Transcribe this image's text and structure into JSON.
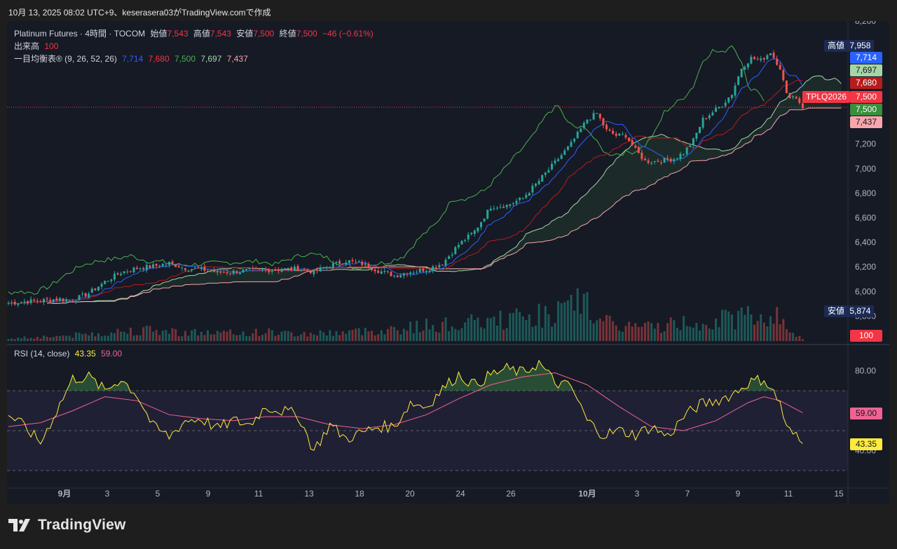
{
  "caption": "10月 13, 2025 08:02 UTC+9、keserasera03がTradingView.comで作成",
  "header": {
    "symbol": "Platinum Futures · 4時間 · TOCOM",
    "open_label": "始値",
    "open_value": "7,543",
    "high_label": "高値",
    "high_value": "7,543",
    "low_label": "安値",
    "low_value": "7,500",
    "close_label": "終値",
    "close_value": "7,500",
    "change": "−46 (−0.61%)"
  },
  "volume_legend": {
    "label": "出来高",
    "value": "100"
  },
  "ichimoku_legend": {
    "label": "一目均衡表® (9, 26, 52, 26)",
    "values": [
      "7,714",
      "7,680",
      "7,500",
      "7,697",
      "7,437"
    ],
    "colors": [
      "#2962ff",
      "#f23645",
      "#4caf50",
      "#a5d6a7",
      "#f7a6ab"
    ]
  },
  "rsi_legend": {
    "label": "RSI (14, close)",
    "rsi": "43.35",
    "ma": "59.00"
  },
  "price_scale": {
    "ticks": [
      "8,200",
      "7,200",
      "7,000",
      "6,800",
      "6,600",
      "6,400",
      "6,200",
      "6,000",
      "5,800"
    ],
    "tick_values": [
      8200,
      7200,
      7000,
      6800,
      6600,
      6400,
      6200,
      6000,
      5800
    ],
    "high_tag": {
      "label": "高値",
      "value": "7,958"
    },
    "low_tag": {
      "label": "安値",
      "value": "5,874"
    },
    "tags": [
      {
        "text": "7,714",
        "price": 7714,
        "bg": "#2962ff",
        "fg": "#ffffff"
      },
      {
        "text": "7,697",
        "price": 7697,
        "bg": "#a5d6a7",
        "fg": "#131722"
      },
      {
        "text": "7,680",
        "price": 7680,
        "bg": "#b71c1c",
        "fg": "#ffffff"
      },
      {
        "text": "7,500",
        "price": 7500,
        "bg": "#f23645",
        "fg": "#ffffff"
      },
      {
        "text": "7,500",
        "price": 7500,
        "bg": "#388e3c",
        "fg": "#ffffff"
      },
      {
        "text": "7,437",
        "price": 7437,
        "bg": "#f7a6ab",
        "fg": "#131722"
      }
    ],
    "symbol_tag": "TPLQ2026",
    "volume_tag": "100"
  },
  "rsi_scale": {
    "ticks": [
      "80.00",
      "40.00"
    ],
    "tick_values": [
      80,
      40
    ],
    "ma_tag": "59.00",
    "rsi_tag": "43.35"
  },
  "time_axis": {
    "labels": [
      "9月",
      "3",
      "5",
      "9",
      "11",
      "13",
      "18",
      "20",
      "24",
      "26",
      "10月",
      "3",
      "7",
      "9",
      "11",
      "15"
    ],
    "bold": [
      true,
      false,
      false,
      false,
      false,
      false,
      false,
      false,
      false,
      false,
      true,
      false,
      false,
      false,
      false,
      false
    ]
  },
  "chart_data": {
    "type": "candlestick",
    "instrument": "Platinum Futures",
    "timeframe": "4時間",
    "price_range": [
      5800,
      8200
    ],
    "rsi_range": [
      30,
      90
    ],
    "rsi_bands": [
      70,
      50,
      30
    ],
    "last_close": 7500,
    "period_high": 7958,
    "period_low": 5874,
    "ichimoku": {
      "tenkan": 7714,
      "kijun": 7680,
      "chikou": 7500,
      "span_a": 7697,
      "span_b": 7437
    },
    "close_path": [
      [
        0,
        5905
      ],
      [
        5,
        5918
      ],
      [
        10,
        5925
      ],
      [
        15,
        5940
      ],
      [
        20,
        5930
      ],
      [
        25,
        5985
      ],
      [
        30,
        6080
      ],
      [
        35,
        6155
      ],
      [
        40,
        6190
      ],
      [
        45,
        6205
      ],
      [
        50,
        6230
      ],
      [
        55,
        6190
      ],
      [
        60,
        6180
      ],
      [
        65,
        6155
      ],
      [
        70,
        6160
      ],
      [
        75,
        6170
      ],
      [
        80,
        6175
      ],
      [
        85,
        6180
      ],
      [
        90,
        6185
      ],
      [
        95,
        6160
      ],
      [
        100,
        6210
      ],
      [
        105,
        6250
      ],
      [
        110,
        6225
      ],
      [
        115,
        6170
      ],
      [
        120,
        6130
      ],
      [
        125,
        6160
      ],
      [
        130,
        6180
      ],
      [
        135,
        6230
      ],
      [
        140,
        6380
      ],
      [
        145,
        6490
      ],
      [
        150,
        6690
      ],
      [
        155,
        6700
      ],
      [
        160,
        6760
      ],
      [
        165,
        6900
      ],
      [
        170,
        7050
      ],
      [
        175,
        7200
      ],
      [
        180,
        7400
      ],
      [
        183,
        7450
      ],
      [
        186,
        7310
      ],
      [
        189,
        7270
      ],
      [
        192,
        7270
      ],
      [
        195,
        7150
      ],
      [
        198,
        7060
      ],
      [
        201,
        7060
      ],
      [
        204,
        7070
      ],
      [
        207,
        7080
      ],
      [
        210,
        7130
      ],
      [
        213,
        7230
      ],
      [
        216,
        7400
      ],
      [
        219,
        7460
      ],
      [
        222,
        7520
      ],
      [
        225,
        7610
      ],
      [
        228,
        7820
      ],
      [
        231,
        7900
      ],
      [
        234,
        7880
      ],
      [
        237,
        7950
      ],
      [
        240,
        7820
      ],
      [
        242,
        7600
      ],
      [
        245,
        7580
      ],
      [
        247,
        7500
      ]
    ],
    "rsi_path": [
      [
        0,
        58
      ],
      [
        5,
        52
      ],
      [
        10,
        44
      ],
      [
        15,
        60
      ],
      [
        20,
        76
      ],
      [
        25,
        77
      ],
      [
        30,
        70
      ],
      [
        35,
        76
      ],
      [
        40,
        68
      ],
      [
        45,
        52
      ],
      [
        50,
        47
      ],
      [
        55,
        55
      ],
      [
        60,
        56
      ],
      [
        65,
        51
      ],
      [
        70,
        55
      ],
      [
        75,
        53
      ],
      [
        80,
        62
      ],
      [
        85,
        60
      ],
      [
        90,
        58
      ],
      [
        95,
        40
      ],
      [
        100,
        53
      ],
      [
        105,
        46
      ],
      [
        110,
        49
      ],
      [
        115,
        52
      ],
      [
        120,
        52
      ],
      [
        125,
        64
      ],
      [
        130,
        62
      ],
      [
        135,
        71
      ],
      [
        140,
        78
      ],
      [
        145,
        73
      ],
      [
        150,
        78
      ],
      [
        155,
        81
      ],
      [
        160,
        79
      ],
      [
        165,
        84
      ],
      [
        170,
        74
      ],
      [
        175,
        72
      ],
      [
        180,
        55
      ],
      [
        185,
        48
      ],
      [
        190,
        50
      ],
      [
        195,
        48
      ],
      [
        200,
        52
      ],
      [
        205,
        47
      ],
      [
        210,
        57
      ],
      [
        215,
        63
      ],
      [
        220,
        65
      ],
      [
        225,
        68
      ],
      [
        230,
        74
      ],
      [
        235,
        76
      ],
      [
        240,
        64
      ],
      [
        242,
        51
      ],
      [
        245,
        47
      ],
      [
        247,
        43
      ]
    ],
    "rsi_ma_path": [
      [
        0,
        52
      ],
      [
        10,
        54
      ],
      [
        20,
        60
      ],
      [
        30,
        67
      ],
      [
        40,
        65
      ],
      [
        50,
        58
      ],
      [
        60,
        56
      ],
      [
        70,
        55
      ],
      [
        80,
        57
      ],
      [
        90,
        57
      ],
      [
        100,
        53
      ],
      [
        110,
        51
      ],
      [
        120,
        53
      ],
      [
        130,
        58
      ],
      [
        140,
        66
      ],
      [
        150,
        73
      ],
      [
        160,
        77
      ],
      [
        170,
        79
      ],
      [
        180,
        73
      ],
      [
        190,
        62
      ],
      [
        200,
        52
      ],
      [
        210,
        50
      ],
      [
        220,
        55
      ],
      [
        230,
        64
      ],
      [
        235,
        67
      ],
      [
        240,
        65
      ],
      [
        247,
        59
      ]
    ],
    "volume_path": [
      [
        0,
        4
      ],
      [
        10,
        6
      ],
      [
        20,
        8
      ],
      [
        30,
        12
      ],
      [
        40,
        16
      ],
      [
        50,
        14
      ],
      [
        60,
        12
      ],
      [
        70,
        11
      ],
      [
        80,
        13
      ],
      [
        90,
        10
      ],
      [
        100,
        12
      ],
      [
        110,
        14
      ],
      [
        120,
        17
      ],
      [
        130,
        22
      ],
      [
        140,
        24
      ],
      [
        150,
        28
      ],
      [
        160,
        34
      ],
      [
        170,
        40
      ],
      [
        175,
        46
      ],
      [
        179,
        62
      ],
      [
        180,
        52
      ],
      [
        185,
        26
      ],
      [
        190,
        22
      ],
      [
        200,
        20
      ],
      [
        210,
        26
      ],
      [
        220,
        30
      ],
      [
        228,
        34
      ],
      [
        231,
        45
      ],
      [
        235,
        30
      ],
      [
        238,
        42
      ],
      [
        240,
        26
      ],
      [
        247,
        3
      ]
    ]
  }
}
